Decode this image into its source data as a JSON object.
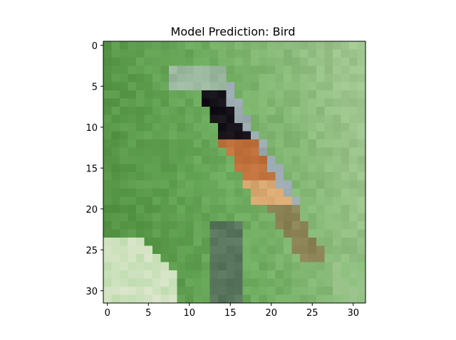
{
  "chart_data": {
    "type": "heatmap",
    "title": "Model Prediction: Bird",
    "image_size": [
      32,
      32
    ],
    "xlim": [
      -0.5,
      31.5
    ],
    "ylim": [
      31.5,
      -0.5
    ],
    "xticks": [
      0,
      5,
      10,
      15,
      20,
      25,
      30
    ],
    "yticks": [
      0,
      5,
      10,
      15,
      20,
      25,
      30
    ],
    "xtick_labels": [
      "0",
      "5",
      "10",
      "15",
      "20",
      "25",
      "30"
    ],
    "ytick_labels": [
      "0",
      "5",
      "10",
      "15",
      "20",
      "25",
      "30"
    ],
    "colors": {
      "bg_dark": "#4f8f3f",
      "bg_mid": "#6cab5d",
      "bg_light": "#9fc58f",
      "bird_dark": "#141018",
      "bird_orange": "#c0703a",
      "bird_tan": "#d8a870",
      "bird_gray": "#9aaab0",
      "branch": "#3e5e3a",
      "flower": "#e6efd6"
    }
  }
}
